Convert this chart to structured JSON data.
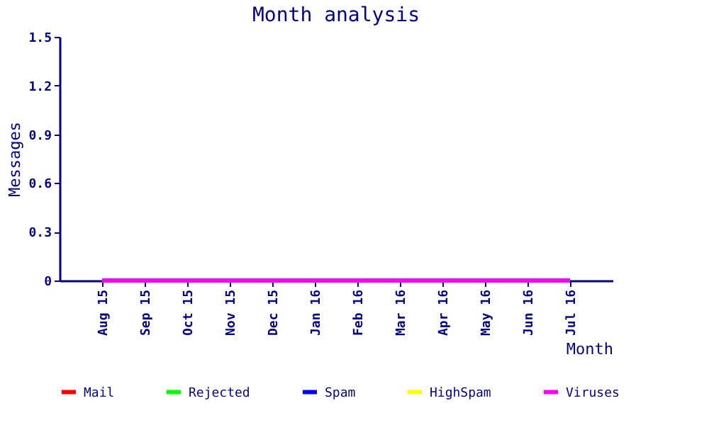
{
  "chart_data": {
    "type": "line",
    "title": "Month analysis",
    "xlabel": "Month",
    "ylabel": "Messages",
    "categories": [
      "Aug 15",
      "Sep 15",
      "Oct 15",
      "Nov 15",
      "Dec 15",
      "Jan 16",
      "Feb 16",
      "Mar 16",
      "Apr 16",
      "May 16",
      "Jun 16",
      "Jul 16"
    ],
    "series": [
      {
        "name": "Mail",
        "color": "#ff0000",
        "values": [
          null,
          null,
          null,
          null,
          null,
          null,
          null,
          null,
          null,
          null,
          null,
          null
        ]
      },
      {
        "name": "Rejected",
        "color": "#00ff00",
        "values": [
          null,
          null,
          null,
          null,
          null,
          null,
          null,
          null,
          null,
          null,
          null,
          null
        ]
      },
      {
        "name": "Spam",
        "color": "#0000ff",
        "values": [
          null,
          null,
          null,
          null,
          null,
          null,
          null,
          null,
          null,
          null,
          null,
          null
        ]
      },
      {
        "name": "HighSpam",
        "color": "#ffff00",
        "values": [
          null,
          null,
          null,
          null,
          null,
          null,
          null,
          null,
          null,
          null,
          null,
          null
        ]
      },
      {
        "name": "Viruses",
        "color": "#ff00ff",
        "values": [
          0,
          0,
          0,
          0,
          0,
          0,
          0,
          0,
          0,
          0,
          0,
          0
        ]
      }
    ],
    "ylim": [
      0,
      1.5
    ],
    "yticks": [
      0,
      0.3,
      0.6,
      0.9,
      1.2,
      1.5
    ],
    "grid": false,
    "legend": "bottom"
  }
}
